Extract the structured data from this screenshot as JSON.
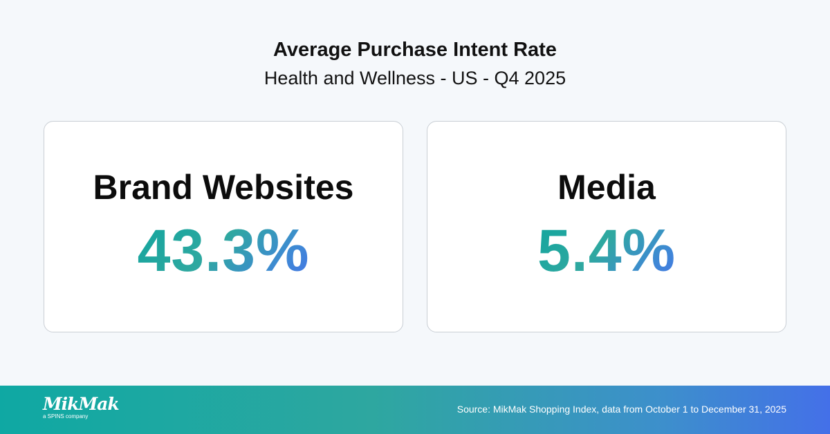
{
  "header": {
    "title": "Average Purchase Intent Rate",
    "subtitle": "Health and Wellness - US - Q4 2025"
  },
  "cards": [
    {
      "label": "Brand Websites",
      "value": "43.3%"
    },
    {
      "label": "Media",
      "value": "5.4%"
    }
  ],
  "footer": {
    "logo": "MikMak",
    "logo_tagline": "a SPINS company",
    "source": "Source: MikMak Shopping Index, data from October 1 to December 31, 2025"
  },
  "colors": {
    "gradient_start": "#11a59e",
    "gradient_end": "#4573e6",
    "background": "#f5f8fb"
  }
}
